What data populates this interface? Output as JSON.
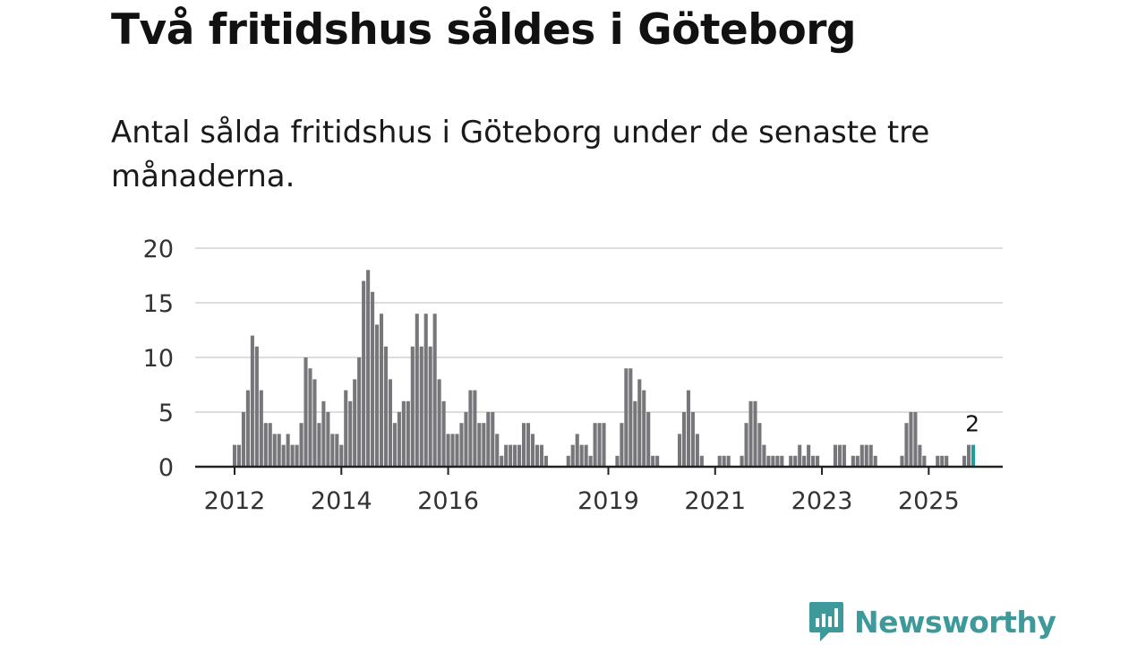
{
  "title": "Två fritidshus såldes i Göteborg",
  "subtitle": "Antal sålda fritidshus i Göteborg under de senaste tre månaderna.",
  "brand": {
    "name": "Newsworthy"
  },
  "colors": {
    "bar": "#77767b",
    "highlight": "#1f9c9c",
    "grid": "#dddddd",
    "axis": "#222222",
    "brand": "#3e9a9a"
  },
  "chart_data": {
    "type": "bar",
    "title": "Två fritidshus såldes i Göteborg",
    "xlabel": "",
    "ylabel": "",
    "ylim": [
      0,
      20
    ],
    "yticks": [
      0,
      5,
      10,
      15,
      20
    ],
    "xticks": [
      {
        "label": "2012",
        "index": 0
      },
      {
        "label": "2014",
        "index": 24
      },
      {
        "label": "2016",
        "index": 48
      },
      {
        "label": "2019",
        "index": 84
      },
      {
        "label": "2021",
        "index": 108
      },
      {
        "label": "2023",
        "index": 132
      },
      {
        "label": "2025",
        "index": 156
      }
    ],
    "x_start": "2012-01",
    "values": [
      2,
      2,
      5,
      7,
      12,
      11,
      7,
      4,
      4,
      3,
      3,
      2,
      3,
      2,
      2,
      4,
      10,
      9,
      8,
      4,
      6,
      5,
      3,
      3,
      2,
      7,
      6,
      8,
      10,
      17,
      18,
      16,
      13,
      14,
      11,
      8,
      4,
      5,
      6,
      6,
      11,
      14,
      11,
      14,
      11,
      14,
      8,
      6,
      3,
      3,
      3,
      4,
      5,
      7,
      7,
      4,
      4,
      5,
      5,
      3,
      1,
      2,
      2,
      2,
      2,
      4,
      4,
      3,
      2,
      2,
      1,
      0,
      0,
      0,
      0,
      1,
      2,
      3,
      2,
      2,
      1,
      4,
      4,
      4,
      0,
      0,
      1,
      4,
      9,
      9,
      6,
      8,
      7,
      5,
      1,
      1,
      0,
      0,
      0,
      0,
      3,
      5,
      7,
      5,
      3,
      1,
      0,
      0,
      0,
      1,
      1,
      1,
      0,
      0,
      1,
      4,
      6,
      6,
      4,
      2,
      1,
      1,
      1,
      1,
      0,
      1,
      1,
      2,
      1,
      2,
      1,
      1,
      0,
      0,
      0,
      2,
      2,
      2,
      0,
      1,
      1,
      2,
      2,
      2,
      1,
      0,
      0,
      0,
      0,
      0,
      1,
      4,
      5,
      5,
      2,
      1,
      0,
      0,
      1,
      1,
      1,
      0,
      0,
      0,
      1,
      2,
      2
    ],
    "highlight": {
      "index": 166,
      "value": 2,
      "label": "2"
    }
  }
}
